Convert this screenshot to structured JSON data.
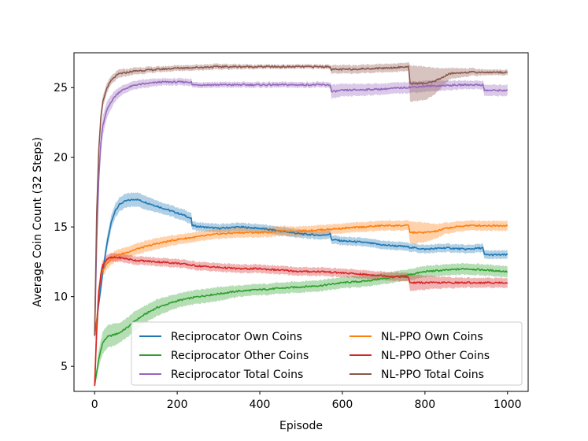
{
  "chart_data": {
    "type": "line",
    "title": "",
    "xlabel": "Episode",
    "ylabel": "Average Coin Count (32 Steps)",
    "xlim": [
      -50,
      1050
    ],
    "ylim": [
      3.2,
      27.5
    ],
    "xticks": [
      0,
      200,
      400,
      600,
      800,
      1000
    ],
    "yticks": [
      5,
      10,
      15,
      20,
      25
    ],
    "legend_position": "lower-right",
    "series": [
      {
        "name": "Reciprocator Own Coins",
        "color": "#1f77b4",
        "x": [
          0,
          10,
          20,
          30,
          40,
          50,
          60,
          70,
          80,
          100,
          120,
          140,
          160,
          180,
          200,
          220,
          234,
          236,
          260,
          300,
          350,
          400,
          450,
          500,
          550,
          570,
          574,
          600,
          650,
          700,
          750,
          800,
          850,
          900,
          940,
          944,
          970,
          1000
        ],
        "y": [
          7.2,
          9.5,
          11.8,
          13.8,
          15.3,
          16.2,
          16.6,
          16.8,
          16.9,
          17.0,
          16.8,
          16.6,
          16.4,
          16.2,
          16.0,
          15.8,
          15.6,
          15.1,
          15.0,
          14.9,
          15.0,
          14.9,
          14.7,
          14.5,
          14.4,
          14.5,
          14.1,
          14.0,
          13.9,
          13.7,
          13.6,
          13.4,
          13.5,
          13.4,
          13.5,
          13.0,
          13.0,
          13.0
        ],
        "band": [
          0.3,
          0.4,
          0.5,
          0.5,
          0.5,
          0.5,
          0.5,
          0.5,
          0.5,
          0.5,
          0.5,
          0.45,
          0.4,
          0.4,
          0.4,
          0.4,
          0.4,
          0.3,
          0.3,
          0.3,
          0.3,
          0.3,
          0.3,
          0.3,
          0.3,
          0.3,
          0.3,
          0.3,
          0.3,
          0.3,
          0.3,
          0.3,
          0.3,
          0.3,
          0.3,
          0.3,
          0.3,
          0.3
        ]
      },
      {
        "name": "Reciprocator Other Coins",
        "color": "#2ca02c",
        "x": [
          0,
          5,
          10,
          15,
          20,
          30,
          40,
          50,
          60,
          80,
          100,
          120,
          150,
          200,
          250,
          300,
          350,
          400,
          450,
          500,
          550,
          575,
          600,
          650,
          700,
          750,
          800,
          850,
          900,
          950,
          1000
        ],
        "y": [
          3.6,
          4.6,
          5.5,
          6.2,
          6.7,
          7.1,
          7.2,
          7.3,
          7.4,
          7.8,
          8.3,
          8.7,
          9.2,
          9.7,
          10.0,
          10.2,
          10.4,
          10.5,
          10.6,
          10.7,
          10.8,
          10.9,
          11.0,
          11.1,
          11.3,
          11.5,
          11.8,
          11.9,
          12.0,
          11.9,
          11.8
        ],
        "band": [
          0.2,
          0.4,
          0.6,
          0.7,
          0.8,
          0.8,
          0.8,
          0.8,
          0.7,
          0.7,
          0.7,
          0.6,
          0.6,
          0.5,
          0.5,
          0.5,
          0.4,
          0.4,
          0.4,
          0.4,
          0.4,
          0.4,
          0.4,
          0.4,
          0.4,
          0.4,
          0.4,
          0.4,
          0.4,
          0.4,
          0.4
        ]
      },
      {
        "name": "Reciprocator Total Coins",
        "color": "#9467bd",
        "x": [
          0,
          5,
          10,
          15,
          20,
          30,
          40,
          50,
          60,
          80,
          100,
          130,
          160,
          200,
          230,
          234,
          236,
          300,
          400,
          500,
          570,
          574,
          600,
          700,
          800,
          900,
          940,
          944,
          1000
        ],
        "y": [
          7.2,
          14.0,
          18.5,
          21.0,
          22.3,
          23.4,
          24.0,
          24.4,
          24.7,
          25.0,
          25.2,
          25.3,
          25.4,
          25.4,
          25.4,
          25.4,
          25.2,
          25.2,
          25.2,
          25.2,
          25.2,
          24.7,
          24.8,
          24.9,
          25.1,
          25.2,
          25.2,
          24.8,
          24.8
        ],
        "band": [
          0.3,
          0.6,
          0.8,
          0.8,
          0.7,
          0.6,
          0.5,
          0.4,
          0.35,
          0.3,
          0.3,
          0.3,
          0.25,
          0.25,
          0.25,
          0.25,
          0.2,
          0.2,
          0.2,
          0.2,
          0.2,
          0.5,
          0.45,
          0.4,
          0.4,
          0.3,
          0.3,
          0.4,
          0.4
        ]
      },
      {
        "name": "NL-PPO Own Coins",
        "color": "#ff7f0e",
        "x": [
          0,
          5,
          10,
          15,
          20,
          30,
          40,
          50,
          60,
          80,
          100,
          150,
          200,
          250,
          300,
          350,
          400,
          450,
          500,
          550,
          600,
          650,
          700,
          750,
          760,
          764,
          800,
          830,
          850,
          900,
          950,
          1000
        ],
        "y": [
          3.6,
          8.0,
          10.5,
          11.4,
          11.9,
          12.4,
          12.7,
          12.9,
          13.0,
          13.2,
          13.4,
          13.8,
          14.1,
          14.3,
          14.5,
          14.6,
          14.6,
          14.7,
          14.7,
          14.8,
          14.9,
          15.0,
          15.1,
          15.1,
          15.1,
          14.6,
          14.6,
          14.7,
          14.9,
          15.1,
          15.1,
          15.1
        ],
        "band": [
          0.2,
          0.4,
          0.5,
          0.5,
          0.4,
          0.4,
          0.4,
          0.4,
          0.4,
          0.4,
          0.4,
          0.4,
          0.35,
          0.35,
          0.35,
          0.35,
          0.35,
          0.35,
          0.35,
          0.35,
          0.35,
          0.35,
          0.35,
          0.35,
          0.35,
          0.8,
          0.7,
          0.5,
          0.4,
          0.35,
          0.35,
          0.35
        ]
      },
      {
        "name": "NL-PPO Other Coins",
        "color": "#d62728",
        "x": [
          0,
          5,
          10,
          15,
          20,
          30,
          40,
          50,
          60,
          80,
          100,
          150,
          200,
          250,
          300,
          350,
          400,
          450,
          500,
          550,
          600,
          650,
          700,
          750,
          760,
          764,
          800,
          850,
          900,
          950,
          1000
        ],
        "y": [
          3.6,
          7.5,
          10.2,
          11.6,
          12.3,
          12.7,
          12.8,
          12.8,
          12.8,
          12.7,
          12.6,
          12.5,
          12.4,
          12.2,
          12.1,
          12.0,
          12.0,
          11.9,
          11.8,
          11.8,
          11.7,
          11.6,
          11.5,
          11.4,
          11.4,
          11.0,
          11.0,
          11.0,
          11.0,
          11.0,
          11.0
        ],
        "band": [
          0.2,
          0.4,
          0.5,
          0.4,
          0.3,
          0.3,
          0.3,
          0.3,
          0.3,
          0.3,
          0.3,
          0.3,
          0.3,
          0.3,
          0.3,
          0.3,
          0.3,
          0.3,
          0.3,
          0.3,
          0.3,
          0.3,
          0.3,
          0.3,
          0.3,
          0.6,
          0.5,
          0.4,
          0.35,
          0.35,
          0.35
        ]
      },
      {
        "name": "NL-PPO Total Coins",
        "color": "#8c564b",
        "x": [
          0,
          5,
          10,
          15,
          20,
          30,
          40,
          50,
          60,
          80,
          100,
          150,
          200,
          300,
          400,
          500,
          570,
          574,
          600,
          700,
          760,
          764,
          800,
          820,
          840,
          860,
          900,
          950,
          1000
        ],
        "y": [
          7.2,
          16.0,
          20.5,
          22.8,
          24.0,
          25.0,
          25.5,
          25.8,
          26.0,
          26.1,
          26.2,
          26.3,
          26.4,
          26.5,
          26.5,
          26.5,
          26.5,
          26.3,
          26.3,
          26.4,
          26.5,
          25.3,
          25.3,
          25.4,
          25.7,
          26.0,
          26.1,
          26.1,
          26.1
        ],
        "band": [
          0.3,
          0.5,
          0.6,
          0.5,
          0.4,
          0.35,
          0.3,
          0.3,
          0.3,
          0.25,
          0.25,
          0.2,
          0.2,
          0.2,
          0.15,
          0.15,
          0.15,
          0.3,
          0.3,
          0.3,
          0.3,
          1.3,
          1.2,
          1.0,
          0.7,
          0.4,
          0.3,
          0.2,
          0.2
        ]
      }
    ],
    "legend": [
      {
        "label": "Reciprocator Own Coins",
        "color": "#1f77b4"
      },
      {
        "label": "NL-PPO Own Coins",
        "color": "#ff7f0e"
      },
      {
        "label": "Reciprocator Other Coins",
        "color": "#2ca02c"
      },
      {
        "label": "NL-PPO Other Coins",
        "color": "#d62728"
      },
      {
        "label": "Reciprocator Total Coins",
        "color": "#9467bd"
      },
      {
        "label": "NL-PPO Total Coins",
        "color": "#8c564b"
      }
    ]
  }
}
